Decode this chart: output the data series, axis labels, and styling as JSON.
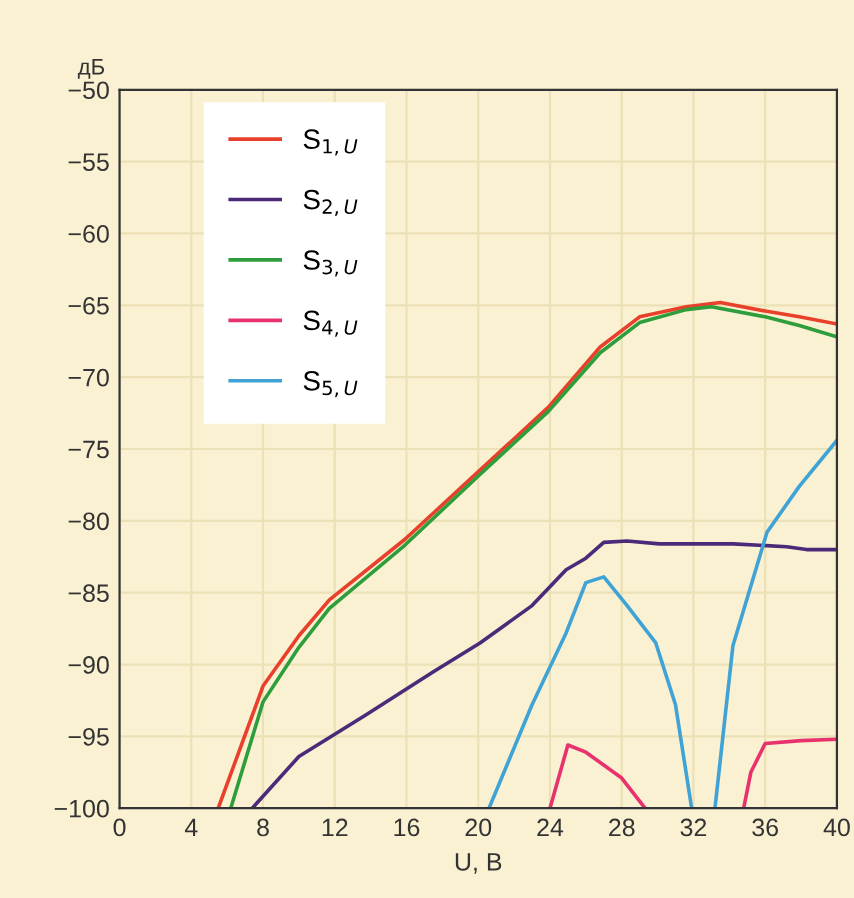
{
  "chart_data": {
    "type": "line",
    "xlabel": "U, B",
    "ylabel": "дБ",
    "xlim": [
      0,
      40
    ],
    "xticks": [
      0,
      4,
      8,
      12,
      16,
      20,
      24,
      28,
      32,
      36,
      40
    ],
    "ylim": [
      -100,
      -50
    ],
    "yticks": [
      -50,
      -55,
      -60,
      -65,
      -70,
      -75,
      -80,
      -85,
      -90,
      -95,
      -100
    ],
    "grid": true,
    "legend": "top left",
    "marker": "none",
    "line_style": "solid",
    "series": [
      {
        "name": "S$_{1,U}$",
        "color": "#e8402a",
        "x": [
          5.5,
          8,
          10,
          11.7,
          15.9,
          19.9,
          23.9,
          26.8,
          29,
          31.6,
          33.5,
          36,
          37.9,
          40
        ],
        "values": [
          -100,
          -91.5,
          -88.0,
          -85.5,
          -81.3,
          -76.7,
          -72.1,
          -67.9,
          -65.8,
          -65.1,
          -64.8,
          -65.4,
          -65.8,
          -66.3
        ]
      },
      {
        "name": "S$_{2,U}$",
        "color": "#4b2a7a",
        "x": [
          7.4,
          10,
          13.75,
          17.5,
          20.1,
          23,
          24.9,
          26,
          27,
          28.3,
          30.1,
          34.2,
          37.2,
          38.3,
          40
        ],
        "values": [
          -100,
          -96.4,
          -93.5,
          -90.5,
          -88.5,
          -85.9,
          -83.4,
          -82.6,
          -81.5,
          -81.4,
          -81.6,
          -81.6,
          -81.8,
          -82.0,
          -82.0
        ]
      },
      {
        "name": "S$_{3,U}$",
        "color": "#2e9e3c",
        "x": [
          6.2,
          8,
          10,
          11.7,
          15.9,
          19.9,
          23.9,
          26.8,
          29,
          31.6,
          33,
          36,
          37.9,
          40
        ],
        "values": [
          -100,
          -92.6,
          -88.8,
          -86.1,
          -81.7,
          -77.0,
          -72.4,
          -68.3,
          -66.2,
          -65.3,
          -65.1,
          -65.8,
          -66.4,
          -67.2
        ]
      },
      {
        "name": "S$_{4,U}$",
        "color": "#e8326e",
        "x": [
          24,
          25,
          26,
          28,
          29.3,
          32,
          34.8,
          35.2,
          36,
          38,
          40
        ],
        "values": [
          -100,
          -95.6,
          -96.1,
          -97.9,
          -100,
          null,
          -100,
          -97.5,
          -95.5,
          -95.3,
          -95.2
        ]
      },
      {
        "name": "S$_{5,U}$",
        "color": "#3fa3d6",
        "x": [
          20.6,
          23,
          24.9,
          26,
          27,
          28.3,
          29.9,
          31,
          31.9,
          32.5,
          33.2,
          34.2,
          36.1,
          37.9,
          40
        ],
        "values": [
          -100,
          -92.8,
          -87.8,
          -84.3,
          -83.9,
          -85.9,
          -88.5,
          -92.8,
          -100,
          null,
          -100,
          -88.7,
          -80.8,
          -77.6,
          -74.4
        ]
      }
    ]
  }
}
